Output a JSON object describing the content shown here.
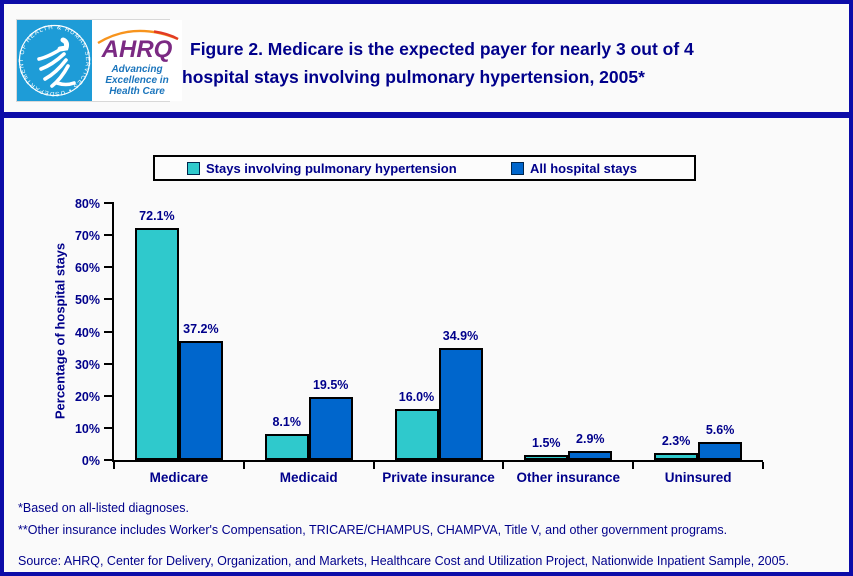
{
  "page": {
    "header": {
      "logo": {
        "seal_text": "DEPARTMENT OF HEALTH & HUMAN SERVICES • USA",
        "org": "AHRQ",
        "tagline_lines": [
          "Advancing",
          "Excellence in",
          "Health Care"
        ]
      },
      "title_line1": "Figure 2. Medicare is the expected payer for nearly 3 out of 4",
      "title_line2": "hospital stays involving pulmonary hypertension, 2005*"
    },
    "footnotes": [
      "*Based on all-listed diagnoses.",
      "**Other insurance includes Worker's Compensation, TRICARE/CHAMPUS, CHAMPVA, Title V, and other government programs."
    ],
    "source": "Source: AHRQ, Center for Delivery, Organization, and Markets, Healthcare Cost and Utilization Project, Nationwide Inpatient Sample, 2005."
  },
  "chart_data": {
    "type": "bar",
    "categories": [
      "Medicare",
      "Medicaid",
      "Private insurance",
      "Other insurance",
      "Uninsured"
    ],
    "series": [
      {
        "name": "Stays involving pulmonary hypertension",
        "color": "#2FC9CC",
        "values": [
          72.1,
          8.1,
          16.0,
          1.5,
          2.3
        ]
      },
      {
        "name": "All hospital stays",
        "color": "#0066CC",
        "values": [
          37.2,
          19.5,
          34.9,
          2.9,
          5.6
        ]
      }
    ],
    "ylabel": "Percentage of hospital stays",
    "ylim": [
      0,
      80
    ],
    "ytick_step": 10,
    "ytick_suffix": "%",
    "data_label_suffix": "%",
    "legend_position": "top",
    "grid": false
  },
  "colors": {
    "navy_text": "#00008B",
    "border_navy": "#0C0CA8",
    "teal_series": "#2FC9CC",
    "blue_series": "#0066CC",
    "seal_blue": "#1E9CD7",
    "ahrq_purple": "#7B2A83",
    "tagline_blue": "#1B75BC",
    "background": "#FAFAFA"
  }
}
